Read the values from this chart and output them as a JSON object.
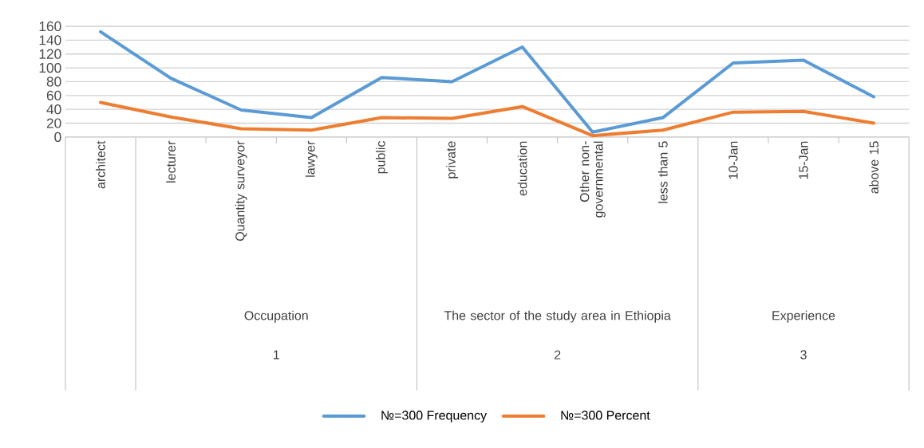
{
  "chart_data": {
    "type": "line",
    "categories": [
      "architect",
      "lecturer",
      "Quantity surveyor",
      "lawyer",
      "public",
      "private",
      "education",
      "Other non-governmental",
      "less than 5",
      "10-Jan",
      "15-Jan",
      "above 15"
    ],
    "series": [
      {
        "name": "№=300 Frequency",
        "color": "#5b9bd5",
        "values": [
          152,
          85,
          39,
          28,
          86,
          80,
          130,
          7,
          28,
          107,
          111,
          58
        ]
      },
      {
        "name": "№=300 Percent",
        "color": "#ed7d31",
        "values": [
          50,
          29,
          12,
          10,
          28,
          27,
          44,
          2,
          10,
          36,
          37,
          20
        ]
      }
    ],
    "ylim": [
      0,
      160
    ],
    "yticks": [
      0,
      20,
      40,
      60,
      80,
      100,
      120,
      140,
      160
    ],
    "grid": "y",
    "legend": "bottom",
    "annotations": [
      "Occupation",
      "The sector of the study area in Ethiopia",
      "Experience",
      "1",
      "2",
      "3"
    ]
  }
}
